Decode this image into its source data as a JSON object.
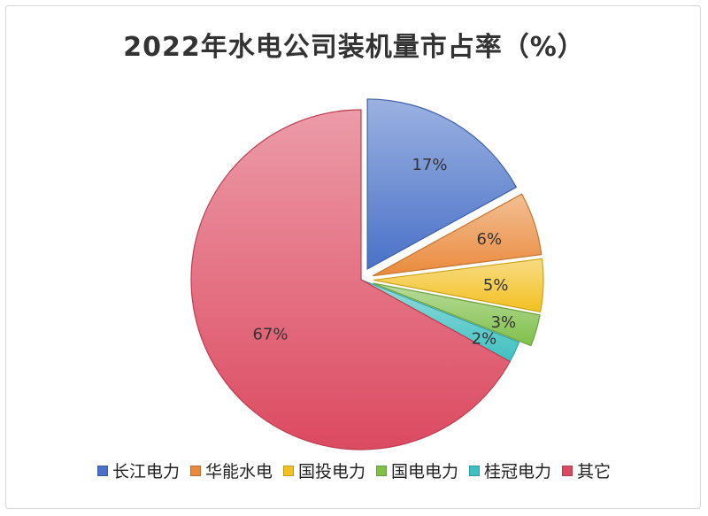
{
  "chart_data": {
    "type": "pie",
    "title": "2022年水电公司装机量市占率（%）",
    "categories": [
      "长江电力",
      "华能水电",
      "国投电力",
      "国电电力",
      "桂冠电力",
      "其它"
    ],
    "values": [
      17,
      6,
      5,
      3,
      2,
      67
    ],
    "labels": [
      "17%",
      "6%",
      "5%",
      "3%",
      "2%",
      "67%"
    ],
    "legend_position": "bottom",
    "exploded": [
      true,
      true,
      true,
      true,
      false,
      false
    ],
    "colors": {
      "长江电力": "#4a72c8",
      "华能水电": "#ea8a3c",
      "国投电力": "#f2c020",
      "国电电力": "#7fbf4a",
      "桂冠电力": "#3fc0c0",
      "其它": "#dc4a60"
    }
  }
}
